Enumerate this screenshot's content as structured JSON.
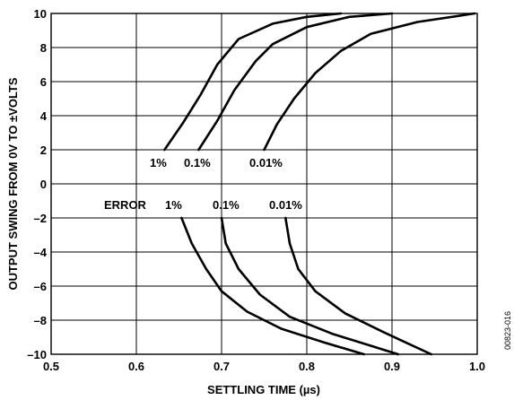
{
  "chart_data": {
    "type": "line",
    "xlabel": "SETTLING TIME (µs)",
    "ylabel": "OUTPUT SWING FROM 0V TO ±VOLTS",
    "xlim": [
      0.5,
      1.0
    ],
    "ylim": [
      -10,
      10
    ],
    "x_ticks": [
      "0.5",
      "0.6",
      "0.7",
      "0.8",
      "0.9",
      "1.0"
    ],
    "y_ticks": [
      "10",
      "8",
      "6",
      "4",
      "2",
      "0",
      "–2",
      "–4",
      "–6",
      "–8",
      "–10"
    ],
    "x_tick_values": [
      0.5,
      0.6,
      0.7,
      0.8,
      0.9,
      1.0
    ],
    "y_tick_values": [
      10,
      8,
      6,
      4,
      2,
      0,
      -2,
      -4,
      -6,
      -8,
      -10
    ],
    "grid": true,
    "figure_id": "00823-016",
    "series": [
      {
        "name": "1%",
        "points": [
          [
            0.633,
            2
          ],
          [
            0.655,
            3.6
          ],
          [
            0.675,
            5.2
          ],
          [
            0.695,
            7
          ],
          [
            0.72,
            8.5
          ],
          [
            0.76,
            9.4
          ],
          [
            0.8,
            9.8
          ],
          [
            0.84,
            10
          ]
        ]
      },
      {
        "name": "0.1%",
        "points": [
          [
            0.673,
            2
          ],
          [
            0.695,
            3.7
          ],
          [
            0.715,
            5.5
          ],
          [
            0.74,
            7.2
          ],
          [
            0.76,
            8.2
          ],
          [
            0.8,
            9.2
          ],
          [
            0.85,
            9.8
          ],
          [
            0.9,
            10
          ]
        ]
      },
      {
        "name": "0.01%",
        "points": [
          [
            0.75,
            2
          ],
          [
            0.765,
            3.5
          ],
          [
            0.785,
            5
          ],
          [
            0.81,
            6.5
          ],
          [
            0.84,
            7.8
          ],
          [
            0.875,
            8.8
          ],
          [
            0.93,
            9.5
          ],
          [
            0.997,
            10
          ]
        ]
      },
      {
        "name": "1%",
        "points": [
          [
            0.653,
            -2
          ],
          [
            0.665,
            -3.5
          ],
          [
            0.682,
            -5
          ],
          [
            0.7,
            -6.3
          ],
          [
            0.73,
            -7.5
          ],
          [
            0.77,
            -8.5
          ],
          [
            0.82,
            -9.3
          ],
          [
            0.867,
            -10
          ]
        ]
      },
      {
        "name": "0.1%",
        "points": [
          [
            0.7,
            -2
          ],
          [
            0.705,
            -3.5
          ],
          [
            0.72,
            -5
          ],
          [
            0.745,
            -6.5
          ],
          [
            0.78,
            -7.8
          ],
          [
            0.83,
            -8.8
          ],
          [
            0.875,
            -9.5
          ],
          [
            0.907,
            -10
          ]
        ]
      },
      {
        "name": "0.01%",
        "points": [
          [
            0.775,
            -2
          ],
          [
            0.78,
            -3.5
          ],
          [
            0.79,
            -5
          ],
          [
            0.81,
            -6.3
          ],
          [
            0.845,
            -7.6
          ],
          [
            0.89,
            -8.7
          ],
          [
            0.92,
            -9.4
          ],
          [
            0.946,
            -10
          ]
        ]
      }
    ],
    "annotations": {
      "upper_1": "1%",
      "upper_01": "0.1%",
      "upper_001": "0.01%",
      "error": "ERROR",
      "lower_1": "1%",
      "lower_01": "0.1%",
      "lower_001": "0.01%"
    }
  }
}
